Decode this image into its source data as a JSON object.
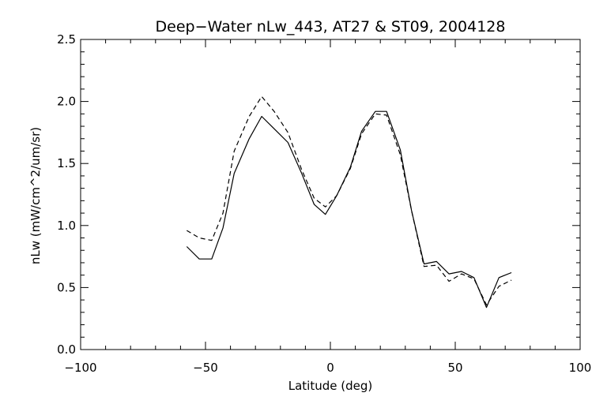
{
  "chart_data": {
    "type": "line",
    "title": "Deep−Water nLw_443, AT27 & ST09, 2004128",
    "xlabel": "Latitude (deg)",
    "ylabel": "nLw (mW/cm^2/um/sr)",
    "xlim": [
      -100,
      100
    ],
    "ylim": [
      0.0,
      2.5
    ],
    "xticks": [
      -100,
      -50,
      0,
      50,
      100
    ],
    "xtick_labels": [
      "−100",
      "−50",
      "0",
      "50",
      "100"
    ],
    "yticks": [
      0.0,
      0.5,
      1.0,
      1.5,
      2.0,
      2.5
    ],
    "ytick_labels": [
      "0.0",
      "0.5",
      "1.0",
      "1.5",
      "2.0",
      "2.5"
    ],
    "grid": false,
    "legend": "none",
    "series": [
      {
        "style": "solid",
        "color": "#000000",
        "points": [
          [
            -57.5,
            0.83
          ],
          [
            -52.5,
            0.73
          ],
          [
            -47.5,
            0.73
          ],
          [
            -43,
            0.98
          ],
          [
            -38.5,
            1.42
          ],
          [
            -32.5,
            1.7
          ],
          [
            -27.5,
            1.88
          ],
          [
            -22.5,
            1.78
          ],
          [
            -17,
            1.67
          ],
          [
            -11.5,
            1.42
          ],
          [
            -6.5,
            1.17
          ],
          [
            -2,
            1.09
          ],
          [
            2.5,
            1.24
          ],
          [
            8,
            1.47
          ],
          [
            12.5,
            1.76
          ],
          [
            18,
            1.92
          ],
          [
            22.5,
            1.92
          ],
          [
            28,
            1.61
          ],
          [
            32.5,
            1.12
          ],
          [
            37.5,
            0.69
          ],
          [
            42.5,
            0.71
          ],
          [
            47.5,
            0.61
          ],
          [
            52.5,
            0.63
          ],
          [
            57.5,
            0.58
          ],
          [
            62.5,
            0.34
          ],
          [
            67.5,
            0.58
          ],
          [
            72.5,
            0.62
          ]
        ]
      },
      {
        "style": "dashed",
        "color": "#000000",
        "points": [
          [
            -57.5,
            0.96
          ],
          [
            -52.5,
            0.9
          ],
          [
            -47.5,
            0.88
          ],
          [
            -43,
            1.1
          ],
          [
            -38.5,
            1.6
          ],
          [
            -32.5,
            1.88
          ],
          [
            -27.5,
            2.04
          ],
          [
            -22.5,
            1.92
          ],
          [
            -17,
            1.75
          ],
          [
            -11.5,
            1.45
          ],
          [
            -6.5,
            1.22
          ],
          [
            -2,
            1.15
          ],
          [
            2.5,
            1.24
          ],
          [
            8,
            1.46
          ],
          [
            12.5,
            1.74
          ],
          [
            18,
            1.9
          ],
          [
            22.5,
            1.89
          ],
          [
            28,
            1.57
          ],
          [
            32.5,
            1.12
          ],
          [
            37.5,
            0.67
          ],
          [
            42.5,
            0.68
          ],
          [
            47.5,
            0.55
          ],
          [
            52.5,
            0.61
          ],
          [
            57.5,
            0.57
          ],
          [
            62.5,
            0.36
          ],
          [
            67.5,
            0.51
          ],
          [
            72.5,
            0.56
          ]
        ]
      }
    ]
  }
}
